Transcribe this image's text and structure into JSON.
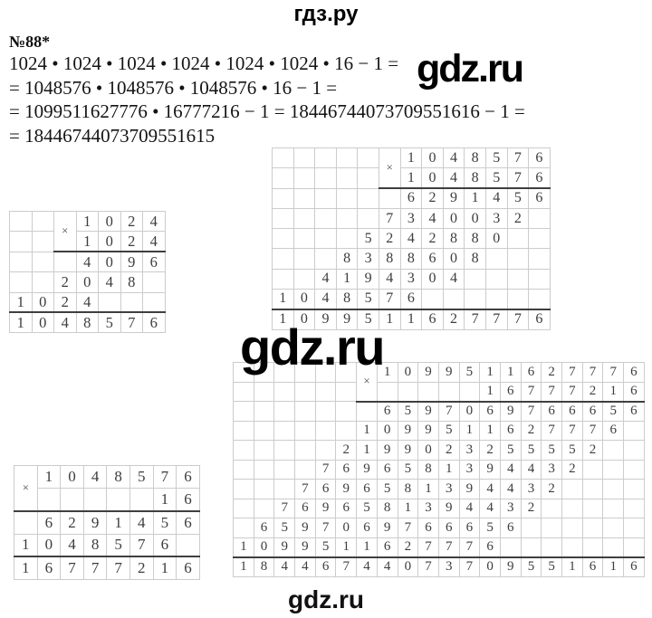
{
  "page": {
    "header_logo": "гдз.ру",
    "watermark_inline": "gdz.ru",
    "watermark_middle": "gdz.ru",
    "footer_logo": "gdz.ru"
  },
  "problem": {
    "number": "№88*",
    "lines": [
      "1024 • 1024 • 1024 • 1024 • 1024 • 1024 • 16 − 1 =",
      "= 1048576 • 1048576 • 1048576 • 16 − 1 =",
      "= 1099511627776 • 16777216 − 1 = 18446744073709551616 − 1 =",
      "= 18446744073709551615"
    ]
  },
  "colors": {
    "background": "#ffffff",
    "text": "#111111",
    "grid_border": "#cccccc",
    "grid_digit": "#3d3d3d",
    "sum_line": "#3f3f3f",
    "watermark": "#000000"
  },
  "grids": {
    "g_1024": {
      "cells": [
        [
          "",
          "",
          "×",
          "1",
          "0",
          "2",
          "4"
        ],
        [
          "",
          "",
          "~",
          "1",
          "0",
          "2",
          "4"
        ],
        [
          "",
          "",
          "",
          "4",
          "0",
          "9",
          "6"
        ],
        [
          "",
          "",
          "2",
          "0",
          "4",
          "8",
          ""
        ],
        [
          "1",
          "0",
          "2",
          "4",
          "",
          "",
          ""
        ],
        [
          "1",
          "0",
          "4",
          "8",
          "5",
          "7",
          "6"
        ]
      ],
      "lines": [
        {
          "after": 2,
          "from": 3
        },
        {
          "after": 5,
          "from": 1
        }
      ]
    },
    "g_1048576": {
      "cells": [
        [
          "",
          "",
          "",
          "",
          "",
          "×",
          "1",
          "0",
          "4",
          "8",
          "5",
          "7",
          "6"
        ],
        [
          "",
          "",
          "",
          "",
          "",
          "~",
          "1",
          "0",
          "4",
          "8",
          "5",
          "7",
          "6"
        ],
        [
          "",
          "",
          "",
          "",
          "",
          "",
          "6",
          "2",
          "9",
          "1",
          "4",
          "5",
          "6"
        ],
        [
          "",
          "",
          "",
          "",
          "",
          "7",
          "3",
          "4",
          "0",
          "0",
          "3",
          "2",
          ""
        ],
        [
          "",
          "",
          "",
          "",
          "5",
          "2",
          "4",
          "2",
          "8",
          "8",
          "0",
          "",
          ""
        ],
        [
          "",
          "",
          "",
          "8",
          "3",
          "8",
          "8",
          "6",
          "0",
          "8",
          "",
          "",
          ""
        ],
        [
          "",
          "",
          "4",
          "1",
          "9",
          "4",
          "3",
          "0",
          "4",
          "",
          "",
          "",
          ""
        ],
        [
          "1",
          "0",
          "4",
          "8",
          "5",
          "7",
          "6",
          "",
          "",
          "",
          "",
          "",
          ""
        ],
        [
          "1",
          "0",
          "9",
          "9",
          "5",
          "1",
          "1",
          "6",
          "2",
          "7",
          "7",
          "7",
          "6"
        ]
      ],
      "lines": [
        {
          "after": 2,
          "from": 6
        },
        {
          "after": 8,
          "from": 1
        }
      ]
    },
    "g_16": {
      "cells": [
        [
          "×",
          "1",
          "0",
          "4",
          "8",
          "5",
          "7",
          "6"
        ],
        [
          "~",
          "",
          "",
          "",
          "",
          "",
          "1",
          "6"
        ],
        [
          "",
          "6",
          "2",
          "9",
          "1",
          "4",
          "5",
          "6"
        ],
        [
          "1",
          "0",
          "4",
          "8",
          "5",
          "7",
          "6",
          ""
        ],
        [
          "1",
          "6",
          "7",
          "7",
          "7",
          "2",
          "1",
          "6"
        ]
      ],
      "lines": [
        {
          "after": 2,
          "from": 1
        },
        {
          "after": 4,
          "from": 1
        }
      ]
    },
    "g_big": {
      "cells": [
        [
          "",
          "",
          "",
          "",
          "",
          "",
          "×",
          "1",
          "0",
          "9",
          "9",
          "5",
          "1",
          "1",
          "6",
          "2",
          "7",
          "7",
          "7",
          "6"
        ],
        [
          "",
          "",
          "",
          "",
          "",
          "",
          "~",
          "",
          "",
          "",
          "",
          "",
          "1",
          "6",
          "7",
          "7",
          "7",
          "2",
          "1",
          "6"
        ],
        [
          "",
          "",
          "",
          "",
          "",
          "",
          "",
          "6",
          "5",
          "9",
          "7",
          "0",
          "6",
          "9",
          "7",
          "6",
          "6",
          "6",
          "5",
          "6"
        ],
        [
          "",
          "",
          "",
          "",
          "",
          "",
          "1",
          "0",
          "9",
          "9",
          "5",
          "1",
          "1",
          "6",
          "2",
          "7",
          "7",
          "7",
          "6",
          ""
        ],
        [
          "",
          "",
          "",
          "",
          "",
          "2",
          "1",
          "9",
          "9",
          "0",
          "2",
          "3",
          "2",
          "5",
          "5",
          "5",
          "5",
          "2",
          "",
          ""
        ],
        [
          "",
          "",
          "",
          "",
          "7",
          "6",
          "9",
          "6",
          "5",
          "8",
          "1",
          "3",
          "9",
          "4",
          "4",
          "3",
          "2",
          "",
          "",
          ""
        ],
        [
          "",
          "",
          "",
          "7",
          "6",
          "9",
          "6",
          "5",
          "8",
          "1",
          "3",
          "9",
          "4",
          "4",
          "3",
          "2",
          "",
          "",
          "",
          ""
        ],
        [
          "",
          "",
          "7",
          "6",
          "9",
          "6",
          "5",
          "8",
          "1",
          "3",
          "9",
          "4",
          "4",
          "3",
          "2",
          "",
          "",
          "",
          "",
          ""
        ],
        [
          "",
          "6",
          "5",
          "9",
          "7",
          "0",
          "6",
          "9",
          "7",
          "6",
          "6",
          "6",
          "5",
          "6",
          "",
          "",
          "",
          "",
          "",
          ""
        ],
        [
          "1",
          "0",
          "9",
          "9",
          "5",
          "1",
          "1",
          "6",
          "2",
          "7",
          "7",
          "7",
          "6",
          "",
          "",
          "",
          "",
          "",
          "",
          ""
        ],
        [
          "1",
          "8",
          "4",
          "4",
          "6",
          "7",
          "4",
          "4",
          "0",
          "7",
          "3",
          "7",
          "0",
          "9",
          "5",
          "5",
          "1",
          "6",
          "1",
          "6"
        ]
      ],
      "lines": [
        {
          "after": 2,
          "from": 7
        },
        {
          "after": 10,
          "from": 1
        }
      ]
    }
  }
}
